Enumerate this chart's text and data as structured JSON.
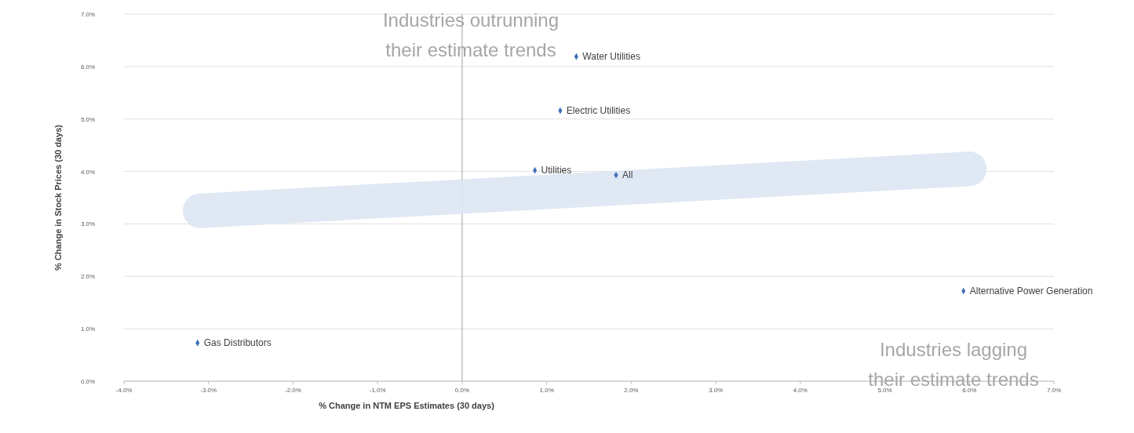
{
  "chart_data": {
    "type": "scatter",
    "xlabel": "% Change in NTM EPS Estimates (30 days)",
    "ylabel": "% Change in Stock Prices (30 days)",
    "xlim": [
      -4,
      7
    ],
    "ylim": [
      0,
      7
    ],
    "xticks": [
      {
        "value": -4,
        "label": "-4.0%"
      },
      {
        "value": -3,
        "label": "-3.0%"
      },
      {
        "value": -2,
        "label": "-2.0%"
      },
      {
        "value": -1,
        "label": "-1.0%"
      },
      {
        "value": 0,
        "label": "0.0%"
      },
      {
        "value": 1,
        "label": "1.0%"
      },
      {
        "value": 2,
        "label": "2.0%"
      },
      {
        "value": 3,
        "label": "3.0%"
      },
      {
        "value": 4,
        "label": "4.0%"
      },
      {
        "value": 5,
        "label": "5.0%"
      },
      {
        "value": 6,
        "label": "6.0%"
      },
      {
        "value": 7,
        "label": "7.0%"
      }
    ],
    "yticks": [
      {
        "value": 0,
        "label": "0.0%"
      },
      {
        "value": 1,
        "label": "1.0%"
      },
      {
        "value": 2,
        "label": "2.0%"
      },
      {
        "value": 3,
        "label": "3.0%"
      },
      {
        "value": 4,
        "label": "4.0%"
      },
      {
        "value": 5,
        "label": "5.0%"
      },
      {
        "value": 6,
        "label": "6.0%"
      },
      {
        "value": 7,
        "label": "7.0%"
      }
    ],
    "grid": "y",
    "marker": "diamond",
    "series": [
      {
        "type": "line",
        "marker": "none",
        "color": "#dce6f2",
        "x": [
          -3.1,
          6.0
        ],
        "values": [
          3.25,
          4.05
        ]
      },
      {
        "name": "Water Utilities",
        "color": "#3d6fb6",
        "x": [
          1.35
        ],
        "values": [
          6.19
        ]
      },
      {
        "name": "Electric Utilities",
        "color": "#3d6fb6",
        "x": [
          1.16
        ],
        "values": [
          5.16
        ]
      },
      {
        "name": "Utilities",
        "color": "#3d6fb6",
        "x": [
          0.86
        ],
        "values": [
          4.02
        ]
      },
      {
        "name": "All",
        "color": "#3d6fb6",
        "x": [
          1.82
        ],
        "values": [
          3.93
        ]
      },
      {
        "name": "Alternative Power Generation",
        "color": "#3d6fb6",
        "x": [
          5.93
        ],
        "values": [
          1.72
        ]
      },
      {
        "name": "Gas Distributors",
        "color": "#3d6fb6",
        "x": [
          -3.13
        ],
        "values": [
          0.73
        ]
      }
    ],
    "annotations": [
      "Industries outrunning\ntheir estimate trends",
      "Industries lagging\ntheir estimate trends"
    ]
  }
}
